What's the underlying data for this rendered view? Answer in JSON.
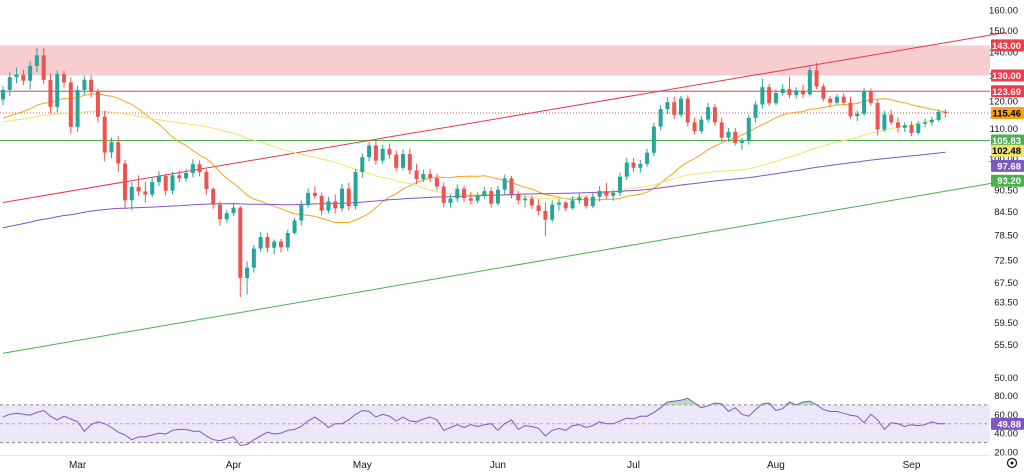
{
  "chart_data": {
    "type": "candlestick",
    "title": "",
    "x_labels": [
      "Mar",
      "Apr",
      "May",
      "Jun",
      "Jul",
      "Aug",
      "Sep"
    ],
    "y_ticks": [
      "160.00",
      "150.00",
      "140.00",
      "130.00",
      "120.00",
      "115.00",
      "110.00",
      "100.00",
      "90.50",
      "84.50",
      "78.50",
      "72.50",
      "67.50",
      "63.50",
      "59.50",
      "55.50",
      "50.00"
    ],
    "ylim": [
      49,
      163
    ],
    "log_scale": true,
    "grid": false,
    "resistance_zone": {
      "low": 130.0,
      "high": 143.0,
      "color": "#f7c4c8"
    },
    "horizontal_lines": [
      {
        "value": 123.69,
        "color": "#e0414f"
      },
      {
        "value": 105.83,
        "color": "#4caf50"
      }
    ],
    "trendlines": [
      {
        "name": "ascending resistance",
        "color": "#e8364a",
        "from": [
          0,
          87
        ],
        "to": [
          148,
          149
        ]
      },
      {
        "name": "ascending support",
        "color": "#4caf50",
        "from": [
          0,
          54
        ],
        "to": [
          148,
          93.2
        ]
      }
    ],
    "moving_averages": [
      {
        "label": "115.46",
        "color": "#f6a41e"
      },
      {
        "label": "102.48",
        "color": "#f3e16b"
      },
      {
        "label": "97.68",
        "color": "#7e57c2"
      }
    ],
    "last_price": 115.46,
    "price_labels": [
      {
        "text": "143.00",
        "bg": "#ef3b4a",
        "fg": "#ffffff"
      },
      {
        "text": "130.00",
        "bg": "#ef3b4a",
        "fg": "#ffffff"
      },
      {
        "text": "123.69",
        "bg": "#ef3b4a",
        "fg": "#ffffff"
      },
      {
        "text": "115.46",
        "bg": "#f7a21b",
        "fg": "#000000"
      },
      {
        "text": "105.83",
        "bg": "#4caf50",
        "fg": "#ffffff"
      },
      {
        "text": "102.48",
        "bg": "#f3e16b",
        "fg": "#000000"
      },
      {
        "text": "97.68",
        "bg": "#7e57c2",
        "fg": "#ffffff"
      },
      {
        "text": "93.20",
        "bg": "#4caf50",
        "fg": "#ffffff"
      }
    ],
    "colors": {
      "up": "#26a69a",
      "down": "#ef5350"
    },
    "candles": [
      [
        0,
        120.5,
        125.6,
        118.4,
        124.2
      ],
      [
        1,
        124.2,
        131.4,
        121.9,
        129.3
      ],
      [
        2,
        129.3,
        133.2,
        126.8,
        130.4
      ],
      [
        3,
        130.4,
        132.4,
        126.1,
        127.9
      ],
      [
        4,
        127.9,
        136.2,
        124.3,
        134.0
      ],
      [
        5,
        134.0,
        141.8,
        131.4,
        138.6
      ],
      [
        6,
        138.6,
        141.9,
        126.5,
        128.2
      ],
      [
        7,
        128.2,
        130.8,
        115.2,
        117.7
      ],
      [
        8,
        117.7,
        132.1,
        115.8,
        130.6
      ],
      [
        9,
        130.6,
        131.9,
        125.2,
        127.2
      ],
      [
        10,
        127.2,
        129.2,
        108.1,
        110.5
      ],
      [
        11,
        110.5,
        125.8,
        108.8,
        124.2
      ],
      [
        12,
        124.2,
        129.9,
        122.2,
        128.3
      ],
      [
        13,
        128.3,
        130.2,
        121.3,
        123.5
      ],
      [
        14,
        123.5,
        124.8,
        112.0,
        114.1
      ],
      [
        15,
        114.1,
        116.3,
        99.1,
        101.9
      ],
      [
        16,
        101.9,
        106.9,
        100.1,
        105.3
      ],
      [
        17,
        105.3,
        107.3,
        95.8,
        98.4
      ],
      [
        18,
        98.4,
        99.6,
        85.2,
        87.6
      ],
      [
        19,
        87.6,
        92.8,
        84.8,
        91.4
      ],
      [
        20,
        91.4,
        94.8,
        88.9,
        90.1
      ],
      [
        21,
        90.1,
        92.9,
        86.9,
        89.2
      ],
      [
        22,
        89.2,
        94.1,
        88.5,
        92.8
      ],
      [
        23,
        92.8,
        96.1,
        91.6,
        94.6
      ],
      [
        24,
        94.6,
        95.3,
        89.0,
        90.3
      ],
      [
        25,
        90.3,
        95.8,
        89.3,
        94.8
      ],
      [
        26,
        94.8,
        96.3,
        92.7,
        93.9
      ],
      [
        27,
        93.9,
        96.7,
        92.8,
        95.5
      ],
      [
        28,
        95.5,
        99.7,
        94.2,
        98.2
      ],
      [
        29,
        98.2,
        99.4,
        94.5,
        95.8
      ],
      [
        30,
        95.8,
        96.6,
        89.3,
        90.8
      ],
      [
        31,
        90.8,
        91.3,
        85.3,
        86.4
      ],
      [
        32,
        86.4,
        87.3,
        80.9,
        82.5
      ],
      [
        33,
        82.5,
        85.0,
        81.6,
        84.1
      ],
      [
        34,
        84.1,
        86.8,
        83.3,
        85.6
      ],
      [
        35,
        85.6,
        86.0,
        64.5,
        68.5
      ],
      [
        36,
        68.5,
        72.2,
        65.0,
        70.8
      ],
      [
        37,
        70.8,
        76.1,
        69.7,
        75.2
      ],
      [
        38,
        75.2,
        79.2,
        74.4,
        78.0
      ],
      [
        39,
        78.0,
        79.0,
        74.3,
        75.4
      ],
      [
        40,
        75.4,
        77.4,
        73.9,
        76.9
      ],
      [
        41,
        76.9,
        77.6,
        74.3,
        75.5
      ],
      [
        42,
        75.5,
        79.8,
        74.6,
        79.0
      ],
      [
        43,
        79.0,
        82.9,
        78.6,
        82.2
      ],
      [
        44,
        82.2,
        87.6,
        80.9,
        86.3
      ],
      [
        45,
        86.3,
        90.9,
        85.6,
        89.7
      ],
      [
        46,
        89.7,
        91.6,
        87.9,
        88.8
      ],
      [
        47,
        88.8,
        89.7,
        83.5,
        84.8
      ],
      [
        48,
        84.8,
        88.6,
        84.1,
        87.3
      ],
      [
        49,
        87.3,
        89.2,
        84.0,
        85.4
      ],
      [
        50,
        85.4,
        92.2,
        84.5,
        90.9
      ],
      [
        51,
        90.9,
        92.6,
        84.9,
        86.0
      ],
      [
        52,
        86.0,
        96.7,
        85.1,
        95.8
      ],
      [
        53,
        95.8,
        101.6,
        94.1,
        100.4
      ],
      [
        54,
        100.4,
        105.3,
        99.1,
        104.2
      ],
      [
        55,
        104.2,
        106.4,
        98.0,
        99.3
      ],
      [
        56,
        99.3,
        104.4,
        98.4,
        103.1
      ],
      [
        57,
        103.1,
        104.8,
        99.9,
        101.2
      ],
      [
        58,
        101.2,
        102.6,
        96.1,
        97.1
      ],
      [
        59,
        97.1,
        102.9,
        96.3,
        101.4
      ],
      [
        60,
        101.4,
        103.1,
        95.1,
        96.3
      ],
      [
        61,
        96.3,
        98.3,
        92.2,
        93.7
      ],
      [
        62,
        93.7,
        96.5,
        92.8,
        95.2
      ],
      [
        63,
        95.2,
        96.8,
        92.8,
        94.0
      ],
      [
        64,
        94.0,
        95.2,
        90.4,
        91.5
      ],
      [
        65,
        91.5,
        92.6,
        85.7,
        86.9
      ],
      [
        66,
        86.9,
        89.2,
        85.6,
        88.1
      ],
      [
        67,
        88.1,
        92.1,
        87.0,
        90.9
      ],
      [
        68,
        90.9,
        91.7,
        87.2,
        88.2
      ],
      [
        69,
        88.2,
        89.9,
        86.4,
        87.5
      ],
      [
        70,
        87.5,
        89.8,
        86.8,
        88.9
      ],
      [
        71,
        88.9,
        91.3,
        88.0,
        90.2
      ],
      [
        72,
        90.2,
        91.3,
        85.6,
        86.7
      ],
      [
        73,
        86.7,
        91.7,
        86.1,
        90.6
      ],
      [
        74,
        90.6,
        95.0,
        89.4,
        93.9
      ],
      [
        75,
        93.9,
        94.6,
        88.1,
        89.3
      ],
      [
        76,
        89.3,
        90.2,
        86.5,
        87.6
      ],
      [
        77,
        87.6,
        88.9,
        85.6,
        88.1
      ],
      [
        78,
        88.1,
        88.9,
        85.2,
        86.2
      ],
      [
        79,
        86.2,
        87.9,
        83.5,
        84.7
      ],
      [
        80,
        84.7,
        87.0,
        78.3,
        82.4
      ],
      [
        81,
        82.4,
        87.6,
        81.7,
        86.4
      ],
      [
        82,
        86.4,
        88.0,
        84.8,
        87.0
      ],
      [
        83,
        87.0,
        87.4,
        84.6,
        85.4
      ],
      [
        84,
        85.4,
        88.8,
        85.1,
        87.6
      ],
      [
        85,
        87.6,
        89.7,
        86.7,
        88.4
      ],
      [
        86,
        88.4,
        88.8,
        85.3,
        86.0
      ],
      [
        87,
        86.0,
        89.6,
        85.5,
        88.6
      ],
      [
        88,
        88.6,
        91.6,
        87.3,
        90.2
      ],
      [
        89,
        90.2,
        92.6,
        88.0,
        88.9
      ],
      [
        90,
        88.9,
        90.6,
        87.5,
        89.7
      ],
      [
        91,
        89.7,
        95.6,
        88.8,
        94.4
      ],
      [
        92,
        94.4,
        100.2,
        93.4,
        98.7
      ],
      [
        93,
        98.7,
        100.2,
        95.9,
        97.1
      ],
      [
        94,
        97.1,
        99.5,
        95.6,
        98.3
      ],
      [
        95,
        98.3,
        103.1,
        97.4,
        101.8
      ],
      [
        96,
        101.8,
        112.0,
        100.7,
        110.6
      ],
      [
        97,
        110.6,
        118.3,
        109.3,
        116.9
      ],
      [
        98,
        116.9,
        121.4,
        115.1,
        119.5
      ],
      [
        99,
        119.5,
        121.7,
        113.3,
        114.8
      ],
      [
        100,
        114.8,
        121.9,
        113.9,
        120.9
      ],
      [
        101,
        120.9,
        122.1,
        110.6,
        112.1
      ],
      [
        102,
        112.1,
        113.8,
        107.9,
        109.0
      ],
      [
        103,
        109.0,
        114.4,
        108.1,
        113.1
      ],
      [
        104,
        113.1,
        119.2,
        112.0,
        117.6
      ],
      [
        105,
        117.6,
        118.9,
        110.9,
        112.1
      ],
      [
        106,
        112.1,
        113.8,
        105.4,
        106.8
      ],
      [
        107,
        106.8,
        110.1,
        105.4,
        108.8
      ],
      [
        108,
        108.8,
        110.1,
        104.2,
        105.0
      ],
      [
        109,
        105.0,
        106.7,
        102.8,
        105.6
      ],
      [
        110,
        105.6,
        114.9,
        104.5,
        113.7
      ],
      [
        111,
        113.7,
        119.9,
        112.1,
        118.6
      ],
      [
        112,
        118.6,
        128.8,
        117.1,
        125.3
      ],
      [
        113,
        125.3,
        126.7,
        118.1,
        119.1
      ],
      [
        114,
        119.1,
        124.5,
        118.3,
        123.0
      ],
      [
        115,
        123.0,
        126.6,
        122.0,
        124.6
      ],
      [
        116,
        124.6,
        129.5,
        121.0,
        122.2
      ],
      [
        117,
        122.2,
        125.3,
        120.8,
        124.0
      ],
      [
        118,
        124.0,
        126.4,
        121.1,
        122.5
      ],
      [
        119,
        122.5,
        134.5,
        121.6,
        132.2
      ],
      [
        120,
        132.2,
        135.4,
        124.5,
        125.6
      ],
      [
        121,
        125.6,
        126.7,
        119.8,
        120.8
      ],
      [
        122,
        120.8,
        121.8,
        117.9,
        119.3
      ],
      [
        123,
        119.3,
        122.6,
        118.6,
        121.6
      ],
      [
        124,
        121.6,
        123.0,
        118.4,
        119.3
      ],
      [
        125,
        119.3,
        121.6,
        113.4,
        114.3
      ],
      [
        126,
        114.3,
        116.3,
        112.6,
        115.2
      ],
      [
        127,
        115.2,
        125.0,
        114.5,
        123.8
      ],
      [
        128,
        123.8,
        124.8,
        118.2,
        119.2
      ],
      [
        129,
        119.2,
        120.6,
        107.5,
        109.6
      ],
      [
        130,
        109.6,
        116.3,
        108.7,
        114.9
      ],
      [
        131,
        114.9,
        116.6,
        111.2,
        112.1
      ],
      [
        132,
        112.1,
        113.8,
        108.5,
        110.2
      ],
      [
        133,
        110.2,
        112.1,
        108.7,
        111.1
      ],
      [
        134,
        111.1,
        112.5,
        107.3,
        108.4
      ],
      [
        135,
        108.4,
        112.5,
        107.8,
        111.6
      ],
      [
        136,
        111.6,
        113.4,
        110.4,
        112.1
      ],
      [
        137,
        112.1,
        114.1,
        110.9,
        113.0
      ],
      [
        138,
        113.0,
        116.6,
        112.3,
        115.9
      ],
      [
        139,
        115.9,
        116.9,
        113.9,
        115.46
      ]
    ],
    "rsi": {
      "value": 49.88,
      "ylim": [
        20,
        90
      ],
      "ticks": [
        "80.00",
        "60.00",
        "40.00",
        "20.00"
      ],
      "overbought": 70,
      "oversold": 30,
      "color": "#7e57c2",
      "band_color": "#ede7fa",
      "values": [
        57,
        60,
        61,
        60,
        59,
        62,
        64,
        58,
        54,
        58,
        55,
        52,
        42,
        49,
        52,
        50,
        46,
        41,
        38,
        33,
        36,
        36,
        38,
        40,
        39,
        43,
        44,
        44,
        42,
        42,
        37,
        33,
        32,
        34,
        36,
        27,
        28,
        33,
        37,
        41,
        39,
        40,
        43,
        44,
        47,
        53,
        57,
        52,
        46,
        50,
        50,
        54,
        60,
        64,
        63,
        57,
        60,
        58,
        53,
        57,
        53,
        52,
        55,
        57,
        54,
        43,
        46,
        49,
        46,
        49,
        47,
        49,
        50,
        43,
        50,
        54,
        44,
        48,
        47,
        45,
        37,
        43,
        45,
        43,
        48,
        49,
        46,
        48,
        52,
        50,
        50,
        53,
        56,
        55,
        58,
        58,
        62,
        67,
        73,
        74,
        75,
        77,
        72,
        67,
        69,
        72,
        71,
        63,
        67,
        60,
        58,
        65,
        71,
        72,
        64,
        66,
        73,
        70,
        73,
        74,
        70,
        65,
        63,
        63,
        61,
        59,
        58,
        51,
        60,
        54,
        44,
        51,
        50,
        47,
        49,
        48,
        49,
        52,
        50,
        49.88
      ]
    }
  }
}
